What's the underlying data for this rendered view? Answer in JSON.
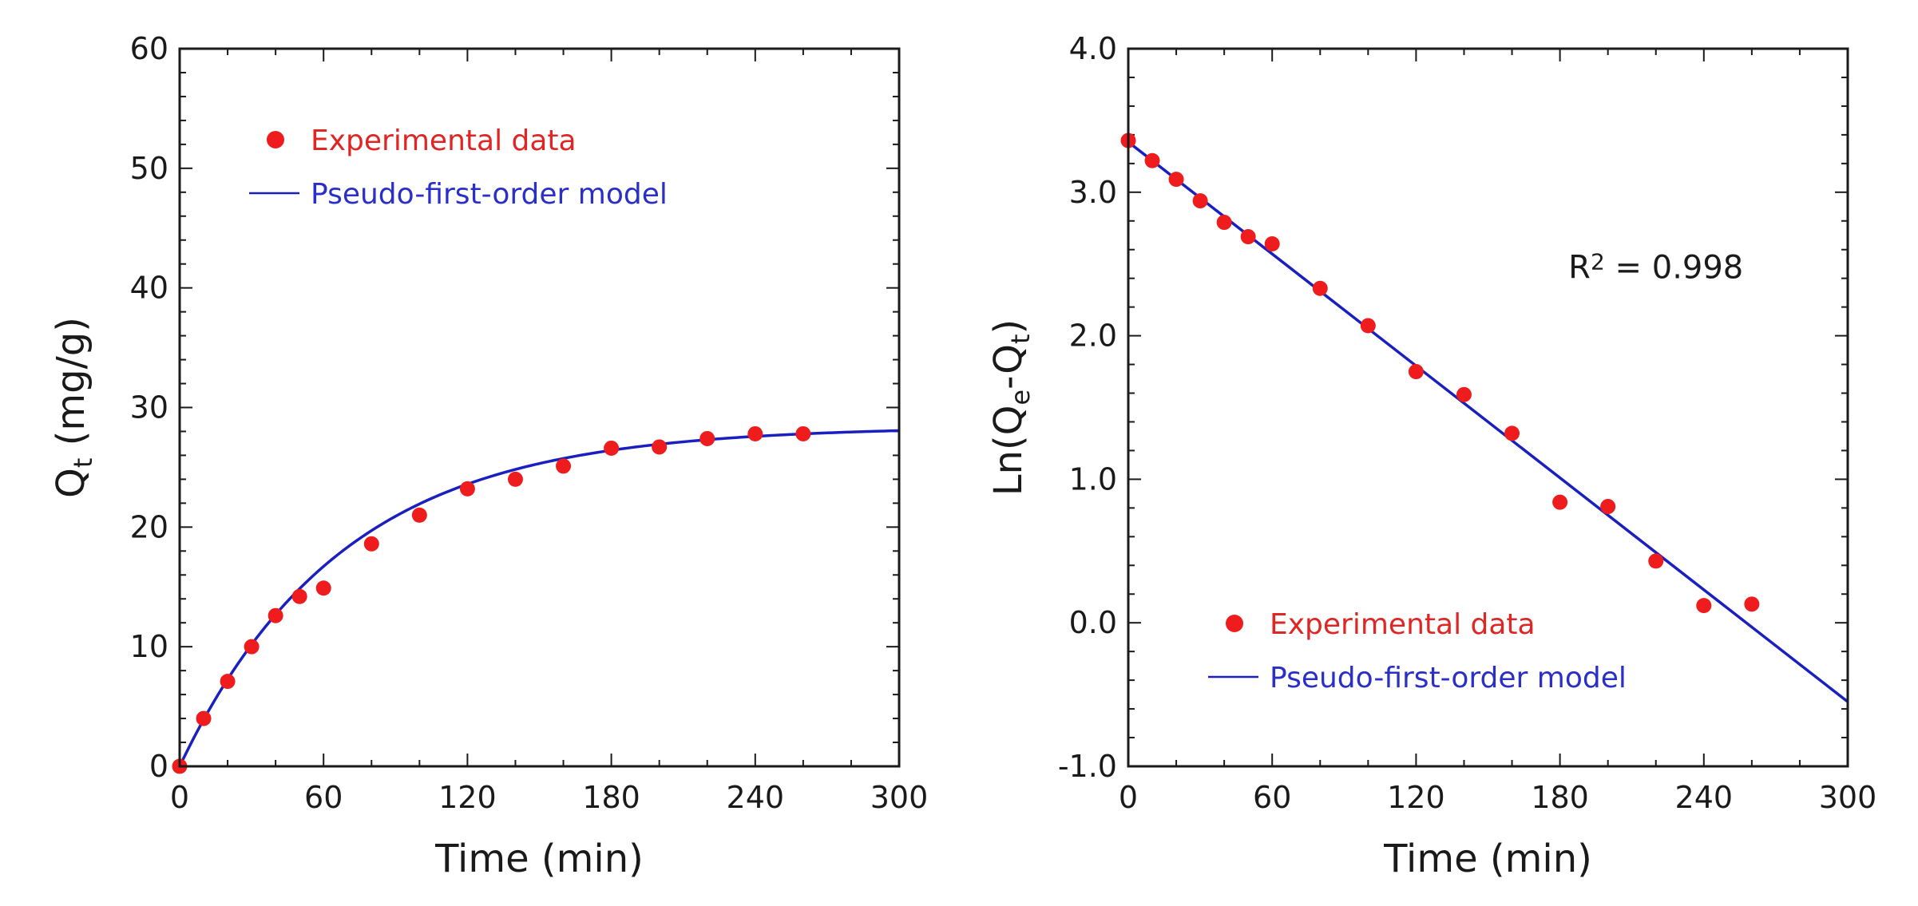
{
  "chart_data": [
    {
      "type": "scatter",
      "panel": "left",
      "title": "",
      "xlabel": "Time (min)",
      "ylabel": "Qt (mg/g)",
      "ylabel_main": "Q",
      "ylabel_sub": "t",
      "ylabel_rest": " (mg/g)",
      "xlim": [
        0,
        300
      ],
      "ylim": [
        0,
        60
      ],
      "xticks": [
        0,
        60,
        120,
        180,
        240,
        300
      ],
      "xtick_labels": [
        "0",
        "60",
        "120",
        "180",
        "240",
        "300"
      ],
      "yticks": [
        0,
        10,
        20,
        30,
        40,
        50,
        60
      ],
      "ytick_labels": [
        "0",
        "10",
        "20",
        "30",
        "40",
        "50",
        "60"
      ],
      "x_minor_step": 20,
      "y_minor_step": 2,
      "legend_position": "top-left",
      "series": [
        {
          "name": "Experimental data",
          "kind": "points",
          "color": "#ee1c1c",
          "x": [
            0,
            10,
            20,
            30,
            40,
            50,
            60,
            80,
            100,
            120,
            140,
            160,
            180,
            200,
            220,
            240,
            260
          ],
          "y": [
            0,
            4.0,
            7.1,
            10.0,
            12.6,
            14.2,
            14.9,
            18.6,
            21.0,
            23.2,
            24.0,
            25.1,
            26.6,
            26.7,
            27.4,
            27.8,
            27.8
          ]
        },
        {
          "name": "Pseudo-first-order model",
          "kind": "line",
          "color": "#1a1fc0",
          "model": "Qt = Qe*(1 - exp(-k*t))",
          "Qe": 28.4,
          "k": 0.0148
        }
      ]
    },
    {
      "type": "scatter",
      "panel": "right",
      "title": "",
      "xlabel": "Time (min)",
      "ylabel": "Ln(Qe-Qt)",
      "ylabel_parts": [
        "Ln(Q",
        "e",
        "-Q",
        "t",
        ")"
      ],
      "xlim": [
        0,
        300
      ],
      "ylim": [
        -1.0,
        4.0
      ],
      "xticks": [
        0,
        60,
        120,
        180,
        240,
        300
      ],
      "xtick_labels": [
        "0",
        "60",
        "120",
        "180",
        "240",
        "300"
      ],
      "yticks": [
        -1.0,
        0.0,
        1.0,
        2.0,
        3.0,
        4.0
      ],
      "ytick_labels": [
        "-1.0",
        "0.0",
        "1.0",
        "2.0",
        "3.0",
        "4.0"
      ],
      "x_minor_step": 20,
      "y_minor_step": 0.2,
      "legend_position": "bottom-left",
      "annotation": {
        "text_main": "R",
        "text_sup": "2",
        "text_rest": " = 0.998",
        "x": 220,
        "y": 2.4
      },
      "series": [
        {
          "name": "Experimental data",
          "kind": "points",
          "color": "#ee1c1c",
          "x": [
            0,
            10,
            20,
            30,
            40,
            50,
            60,
            80,
            100,
            120,
            140,
            160,
            180,
            200,
            220,
            240,
            260
          ],
          "y": [
            3.36,
            3.22,
            3.09,
            2.94,
            2.79,
            2.69,
            2.64,
            2.33,
            2.07,
            1.75,
            1.59,
            1.32,
            0.84,
            0.81,
            0.43,
            0.12,
            0.13
          ]
        },
        {
          "name": "Pseudo-first-order model",
          "kind": "line",
          "color": "#1a1fc0",
          "x": [
            0,
            300
          ],
          "y": [
            3.35,
            -0.55
          ]
        }
      ]
    }
  ]
}
